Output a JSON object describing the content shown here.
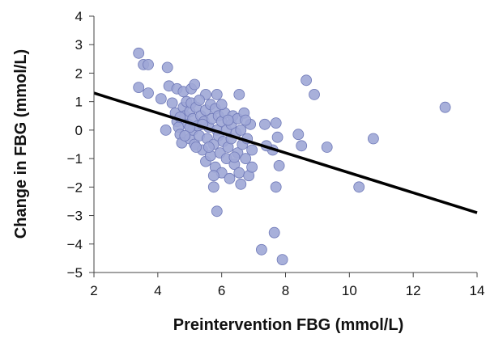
{
  "chart_data": {
    "type": "scatter",
    "title": "",
    "xlabel": "Preintervention FBG (mmol/L)",
    "ylabel": "Change in FBG (mmol/L)",
    "xlim": [
      2,
      14
    ],
    "ylim": [
      -5,
      4
    ],
    "x_ticks": [
      2,
      4,
      6,
      8,
      10,
      12,
      14
    ],
    "y_ticks": [
      -5,
      -4,
      -3,
      -2,
      -1,
      0,
      1,
      2,
      3,
      4
    ],
    "x_tick_labels": [
      "2",
      "4",
      "6",
      "8",
      "10",
      "12",
      "14"
    ],
    "y_tick_labels": [
      "−5",
      "−4",
      "−3",
      "−2",
      "−1",
      "0",
      "1",
      "2",
      "3",
      "4"
    ],
    "grid": false,
    "legend": "none",
    "point_color": "#9fa7d6",
    "point_edge_color": "#6f79b8",
    "line_color": "#000000",
    "series": [
      {
        "points": [
          [
            3.4,
            2.7
          ],
          [
            3.55,
            2.3
          ],
          [
            3.7,
            2.3
          ],
          [
            4.3,
            2.2
          ],
          [
            3.4,
            1.5
          ],
          [
            3.7,
            1.3
          ],
          [
            4.1,
            1.1
          ],
          [
            4.35,
            1.55
          ],
          [
            4.6,
            1.45
          ],
          [
            4.8,
            1.35
          ],
          [
            5.05,
            1.45
          ],
          [
            5.15,
            1.6
          ],
          [
            5.5,
            1.25
          ],
          [
            5.85,
            1.25
          ],
          [
            6.55,
            1.25
          ],
          [
            4.25,
            0.0
          ],
          [
            4.45,
            0.95
          ],
          [
            4.55,
            0.6
          ],
          [
            4.6,
            0.3
          ],
          [
            4.65,
            0.1
          ],
          [
            4.7,
            -0.15
          ],
          [
            4.75,
            -0.45
          ],
          [
            4.8,
            0.8
          ],
          [
            4.85,
            0.5
          ],
          [
            4.9,
            1.0
          ],
          [
            4.95,
            0.2
          ],
          [
            5.0,
            -0.3
          ],
          [
            5.0,
            0.65
          ],
          [
            5.05,
            0.95
          ],
          [
            5.1,
            0.0
          ],
          [
            5.1,
            0.4
          ],
          [
            5.15,
            -0.5
          ],
          [
            5.2,
            0.8
          ],
          [
            5.25,
            0.15
          ],
          [
            5.3,
            -0.2
          ],
          [
            5.3,
            1.05
          ],
          [
            5.35,
            0.5
          ],
          [
            5.4,
            -0.7
          ],
          [
            5.45,
            0.3
          ],
          [
            5.5,
            -1.1
          ],
          [
            5.5,
            0.7
          ],
          [
            5.55,
            -0.3
          ],
          [
            5.6,
            0.1
          ],
          [
            5.65,
            0.9
          ],
          [
            5.65,
            -0.9
          ],
          [
            5.7,
            0.4
          ],
          [
            5.75,
            -0.5
          ],
          [
            5.8,
            -1.3
          ],
          [
            5.8,
            0.75
          ],
          [
            5.85,
            0.0
          ],
          [
            5.9,
            -0.2
          ],
          [
            5.9,
            0.5
          ],
          [
            5.95,
            -0.8
          ],
          [
            6.0,
            -1.5
          ],
          [
            6.0,
            0.3
          ],
          [
            6.05,
            -0.4
          ],
          [
            6.1,
            0.6
          ],
          [
            6.15,
            -1.0
          ],
          [
            6.15,
            0.0
          ],
          [
            6.2,
            -0.6
          ],
          [
            6.25,
            -1.7
          ],
          [
            6.3,
            0.2
          ],
          [
            6.3,
            -0.3
          ],
          [
            6.35,
            0.5
          ],
          [
            6.4,
            -1.2
          ],
          [
            6.45,
            -0.1
          ],
          [
            6.5,
            -0.8
          ],
          [
            6.5,
            0.4
          ],
          [
            6.55,
            -1.5
          ],
          [
            6.6,
            0.0
          ],
          [
            6.65,
            -0.5
          ],
          [
            6.7,
            0.6
          ],
          [
            6.75,
            -1.0
          ],
          [
            6.8,
            -0.3
          ],
          [
            6.85,
            -1.6
          ],
          [
            6.9,
            0.2
          ],
          [
            6.95,
            -1.3
          ],
          [
            6.95,
            -0.7
          ],
          [
            6.75,
            0.35
          ],
          [
            6.6,
            -1.9
          ],
          [
            6.4,
            -0.95
          ],
          [
            6.2,
            0.35
          ],
          [
            6.0,
            0.9
          ],
          [
            5.75,
            -1.6
          ],
          [
            5.6,
            -0.6
          ],
          [
            5.4,
            0.2
          ],
          [
            5.2,
            -0.6
          ],
          [
            5.0,
            0.1
          ],
          [
            4.85,
            -0.2
          ],
          [
            4.7,
            0.45
          ],
          [
            5.75,
            -2.0
          ],
          [
            5.85,
            -2.85
          ],
          [
            7.25,
            -4.2
          ],
          [
            7.65,
            -3.6
          ],
          [
            7.9,
            -4.55
          ],
          [
            7.7,
            -2.0
          ],
          [
            7.8,
            -1.25
          ],
          [
            7.6,
            -0.7
          ],
          [
            7.4,
            -0.55
          ],
          [
            7.35,
            0.2
          ],
          [
            7.7,
            0.25
          ],
          [
            7.75,
            -0.25
          ],
          [
            8.4,
            -0.15
          ],
          [
            8.5,
            -0.55
          ],
          [
            8.65,
            1.75
          ],
          [
            8.9,
            1.25
          ],
          [
            9.3,
            -0.6
          ],
          [
            10.3,
            -2.0
          ],
          [
            10.75,
            -0.3
          ],
          [
            13.0,
            0.8
          ]
        ]
      }
    ],
    "regression_line": {
      "x": [
        2,
        14
      ],
      "y": [
        1.3,
        -2.9
      ]
    }
  }
}
